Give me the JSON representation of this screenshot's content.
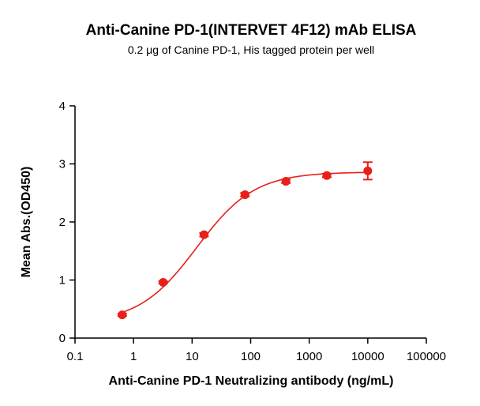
{
  "chart_data": {
    "type": "scatter",
    "title": "Anti-Canine PD-1(INTERVET 4F12) mAb ELISA",
    "subtitle": "0.2 μg of Canine PD-1, His tagged protein per well",
    "xlabel": "Anti-Canine PD-1 Neutralizing antibody (ng/mL)",
    "ylabel": "Mean Abs.(OD450)",
    "x_scale": "log",
    "xlim": [
      0.1,
      100000
    ],
    "ylim": [
      0,
      4
    ],
    "x_ticks": [
      {
        "value": 0.1,
        "label": "0.1"
      },
      {
        "value": 1,
        "label": "1"
      },
      {
        "value": 10,
        "label": "10"
      },
      {
        "value": 100,
        "label": "100"
      },
      {
        "value": 1000,
        "label": "1000"
      },
      {
        "value": 10000,
        "label": "10000"
      },
      {
        "value": 100000,
        "label": "100000"
      }
    ],
    "y_ticks": [
      {
        "value": 0,
        "label": "0"
      },
      {
        "value": 1,
        "label": "1"
      },
      {
        "value": 2,
        "label": "2"
      },
      {
        "value": 3,
        "label": "3"
      },
      {
        "value": 4,
        "label": "4"
      }
    ],
    "grid": false,
    "series": [
      {
        "color": "#e8201a",
        "points": [
          {
            "x": 0.64,
            "y": 0.4,
            "err": 0.02
          },
          {
            "x": 3.2,
            "y": 0.96,
            "err": 0.02
          },
          {
            "x": 16,
            "y": 1.78,
            "err": 0.03
          },
          {
            "x": 80,
            "y": 2.47,
            "err": 0.03
          },
          {
            "x": 400,
            "y": 2.7,
            "err": 0.03
          },
          {
            "x": 2000,
            "y": 2.8,
            "err": 0.03
          },
          {
            "x": 10000,
            "y": 2.88,
            "err": 0.15
          }
        ],
        "fit": {
          "model": "4PL",
          "bottom": 0.26,
          "top": 2.86,
          "ec50": 12.0,
          "hill": 0.88
        }
      }
    ]
  }
}
